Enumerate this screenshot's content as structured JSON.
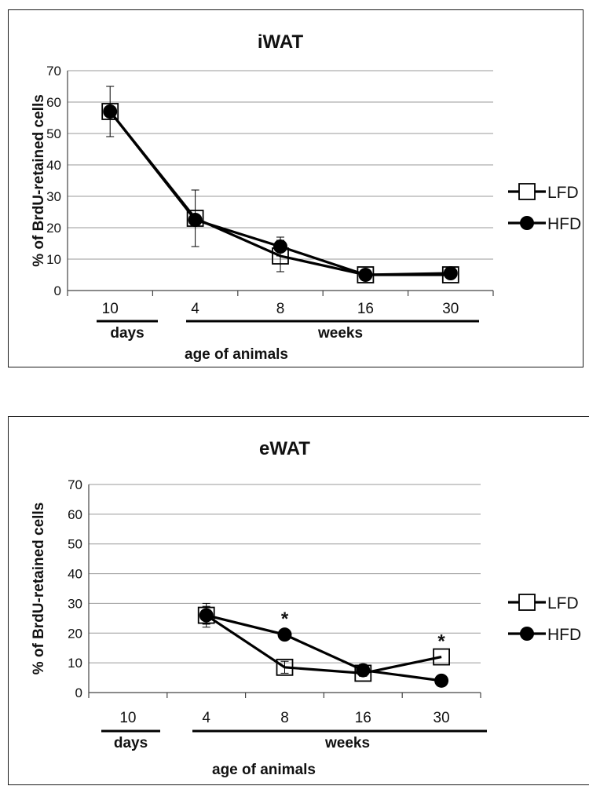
{
  "charts": [
    {
      "title": "iWAT",
      "ylabel": "% of BrdU-retained cells",
      "xlabel": "age of animals",
      "group_labels": {
        "days": "days",
        "weeks": "weeks"
      },
      "legend": [
        {
          "name": "LFD",
          "marker": "open-square"
        },
        {
          "name": "HFD",
          "marker": "filled-circle"
        }
      ]
    },
    {
      "title": "eWAT",
      "ylabel": "% of BrdU-retained cells",
      "xlabel": "age of animals",
      "group_labels": {
        "days": "days",
        "weeks": "weeks"
      },
      "legend": [
        {
          "name": "LFD",
          "marker": "open-square"
        },
        {
          "name": "HFD",
          "marker": "filled-circle"
        }
      ]
    }
  ],
  "chart_data": [
    {
      "type": "line",
      "title": "iWAT",
      "ylabel": "% of BrdU-retained cells",
      "xlabel": "age of animals",
      "categories": [
        "10",
        "4",
        "8",
        "16",
        "30"
      ],
      "category_groups": [
        {
          "label": "days",
          "categories": [
            "10"
          ]
        },
        {
          "label": "weeks",
          "categories": [
            "4",
            "8",
            "16",
            "30"
          ]
        }
      ],
      "ylim": [
        0,
        70
      ],
      "yticks": [
        0,
        10,
        20,
        30,
        40,
        50,
        60,
        70
      ],
      "grid": true,
      "legend_position": "right",
      "series": [
        {
          "name": "LFD",
          "marker": "open-square",
          "values": [
            57,
            23,
            11,
            5,
            5
          ],
          "errors": [
            0,
            9,
            5,
            1,
            1
          ]
        },
        {
          "name": "HFD",
          "marker": "filled-circle",
          "values": [
            57,
            22.5,
            14,
            5,
            5.5
          ],
          "errors": [
            8,
            0,
            3,
            0,
            1
          ]
        }
      ],
      "annotations": []
    },
    {
      "type": "line",
      "title": "eWAT",
      "ylabel": "% of BrdU-retained cells",
      "xlabel": "age of animals",
      "categories": [
        "10",
        "4",
        "8",
        "16",
        "30"
      ],
      "category_groups": [
        {
          "label": "days",
          "categories": [
            "10"
          ]
        },
        {
          "label": "weeks",
          "categories": [
            "4",
            "8",
            "16",
            "30"
          ]
        }
      ],
      "ylim": [
        0,
        70
      ],
      "yticks": [
        0,
        10,
        20,
        30,
        40,
        50,
        60,
        70
      ],
      "grid": true,
      "legend_position": "right",
      "series": [
        {
          "name": "LFD",
          "marker": "open-square",
          "values": [
            null,
            26,
            8.5,
            6.5,
            12
          ],
          "errors": [
            0,
            4,
            2,
            1,
            0
          ]
        },
        {
          "name": "HFD",
          "marker": "filled-circle",
          "values": [
            null,
            26,
            19.5,
            7.5,
            4
          ],
          "errors": [
            0,
            3,
            0,
            2,
            0
          ]
        }
      ],
      "annotations": [
        {
          "category": "8",
          "text": "*"
        },
        {
          "category": "30",
          "text": "*"
        }
      ]
    }
  ]
}
